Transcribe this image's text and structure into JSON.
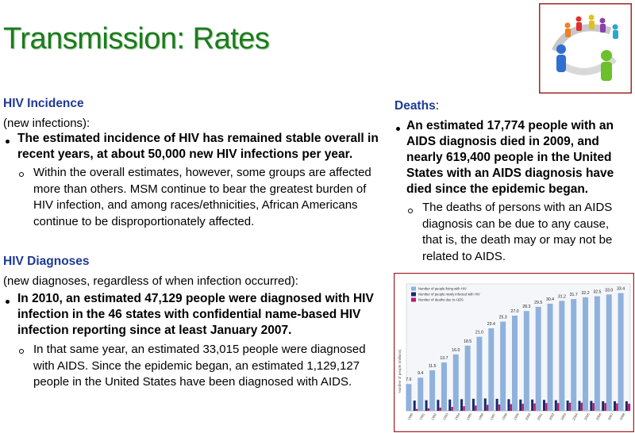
{
  "title": "Transmission: Rates",
  "incidence": {
    "heading": "HIV Incidence",
    "subheading": "(new infections):",
    "bullet": "The estimated incidence of HIV has remained stable overall in recent years, at about 50,000 new HIV infections per year.",
    "subbullet": "Within the overall estimates, however, some groups are affected more than others. MSM continue to bear the greatest burden of HIV infection, and among races/ethnicities, African Americans continue to be disproportionately affected."
  },
  "diagnoses": {
    "heading": "HIV Diagnoses",
    "subheading": "(new diagnoses, regardless of when infection occurred):",
    "bullet": "In 2010, an estimated 47,129 people were diagnosed with HIV infection in the 46 states with confidential name-based HIV infection reporting since at least January 2007.",
    "subbullet": "In that same year, an estimated 33,015 people were diagnosed with AIDS. Since the epidemic began, an estimated 1,129,127 people in the United States have been diagnosed with AIDS."
  },
  "deaths": {
    "heading": "Deaths",
    "heading_suffix": ":",
    "bullet": "An estimated 17,774 people with an AIDS diagnosis died in 2009, and nearly 619,400 people in the United States with an AIDS diagnosis have died since the epidemic began.",
    "subbullet": "The deaths of persons with an AIDS diagnosis can be due to any cause, that is, the death may or may not be related to AIDS."
  },
  "inset_chart": {
    "type": "bar",
    "y_label": "Number of people (millions)",
    "categories": [
      "1990",
      "1991",
      "1992",
      "1993",
      "1994",
      "1995",
      "1996",
      "1997",
      "1998",
      "1999",
      "2000",
      "2001",
      "2002",
      "2003",
      "2004",
      "2005",
      "2006",
      "2007",
      "2008"
    ],
    "ylim": [
      0,
      36
    ],
    "series": [
      {
        "name": "Number of people living with HIV",
        "color": "#8fb2dc",
        "values": [
          7.6,
          9.4,
          11.5,
          13.7,
          16.0,
          18.5,
          21.0,
          23.4,
          25.3,
          27.0,
          28.3,
          29.5,
          30.4,
          31.2,
          31.7,
          32.2,
          32.5,
          33.0,
          33.4
        ],
        "value_labels": [
          "7.6",
          "9.4",
          "11.5",
          "13.7",
          "16.0",
          "18.5",
          "21.0",
          "23.4",
          "25.3",
          "27.0",
          "28.3",
          "29.5",
          "30.4",
          "31.2",
          "31.7",
          "32.2",
          "32.5",
          "33.0",
          "33.4"
        ]
      },
      {
        "name": "Number of people newly infected with HIV",
        "color": "#1b2a6b",
        "values": [
          2.9,
          3.0,
          3.1,
          3.2,
          3.3,
          3.4,
          3.5,
          3.4,
          3.3,
          3.2,
          3.2,
          3.1,
          3.0,
          2.9,
          2.8,
          2.8,
          2.7,
          2.7,
          2.7
        ]
      },
      {
        "name": "Number of deaths due to AIDS",
        "color": "#c0166b",
        "values": [
          0.5,
          0.7,
          0.9,
          1.1,
          1.3,
          1.5,
          1.7,
          1.8,
          1.9,
          2.0,
          2.1,
          2.2,
          2.2,
          2.3,
          2.3,
          2.2,
          2.2,
          2.1,
          2.0
        ]
      }
    ]
  }
}
